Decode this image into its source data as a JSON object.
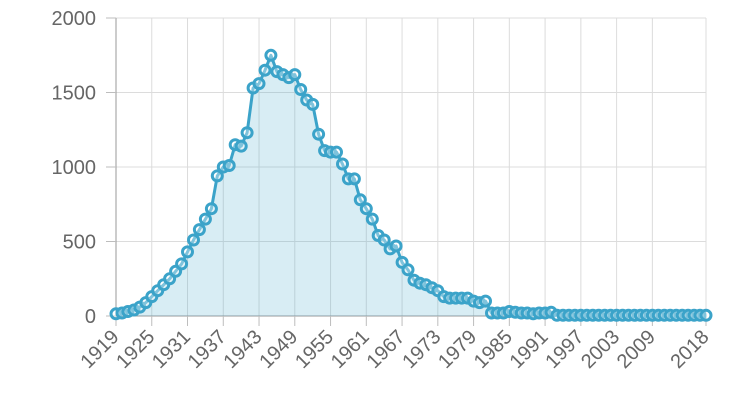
{
  "colors": {
    "series": "#3ba3c9",
    "fill": "#3ba3c9"
  },
  "chart_data": {
    "type": "area",
    "title": "",
    "xlabel": "",
    "ylabel": "",
    "ylim": [
      0,
      2000
    ],
    "xlim": [
      1919,
      2018
    ],
    "grid": true,
    "y_ticks": [
      "0",
      "500",
      "1000",
      "1500",
      "2000"
    ],
    "x_ticks": [
      "1919",
      "1925",
      "1931",
      "1937",
      "1943",
      "1949",
      "1955",
      "1961",
      "1967",
      "1973",
      "1979",
      "1985",
      "1991",
      "1997",
      "2003",
      "2009",
      "2018"
    ],
    "x": [
      1919,
      1920,
      1921,
      1922,
      1923,
      1924,
      1925,
      1926,
      1927,
      1928,
      1929,
      1930,
      1931,
      1932,
      1933,
      1934,
      1935,
      1936,
      1937,
      1938,
      1939,
      1940,
      1941,
      1942,
      1943,
      1944,
      1945,
      1946,
      1947,
      1948,
      1949,
      1950,
      1951,
      1952,
      1953,
      1954,
      1955,
      1956,
      1957,
      1958,
      1959,
      1960,
      1961,
      1962,
      1963,
      1964,
      1965,
      1966,
      1967,
      1968,
      1969,
      1970,
      1971,
      1972,
      1973,
      1974,
      1975,
      1976,
      1977,
      1978,
      1979,
      1980,
      1981,
      1982,
      1983,
      1984,
      1985,
      1986,
      1987,
      1988,
      1989,
      1990,
      1991,
      1992,
      1993,
      1994,
      1995,
      1996,
      1997,
      1998,
      1999,
      2000,
      2001,
      2002,
      2003,
      2004,
      2005,
      2006,
      2007,
      2008,
      2009,
      2010,
      2011,
      2012,
      2013,
      2014,
      2015,
      2016,
      2017,
      2018
    ],
    "series": [
      {
        "values": [
          15,
          20,
          30,
          40,
          60,
          90,
          130,
          170,
          210,
          250,
          300,
          350,
          430,
          510,
          580,
          650,
          720,
          940,
          1000,
          1010,
          1150,
          1140,
          1230,
          1530,
          1560,
          1650,
          1750,
          1640,
          1620,
          1600,
          1620,
          1520,
          1450,
          1420,
          1220,
          1110,
          1100,
          1100,
          1020,
          920,
          920,
          780,
          720,
          650,
          540,
          510,
          450,
          470,
          360,
          310,
          240,
          220,
          210,
          190,
          170,
          130,
          120,
          120,
          120,
          120,
          100,
          90,
          100,
          20,
          20,
          20,
          30,
          25,
          20,
          20,
          15,
          20,
          20,
          25,
          5,
          5,
          5,
          5,
          5,
          5,
          5,
          5,
          5,
          5,
          5,
          5,
          5,
          5,
          5,
          5,
          5,
          5,
          5,
          5,
          5,
          5,
          5,
          5,
          5,
          5
        ]
      }
    ]
  }
}
